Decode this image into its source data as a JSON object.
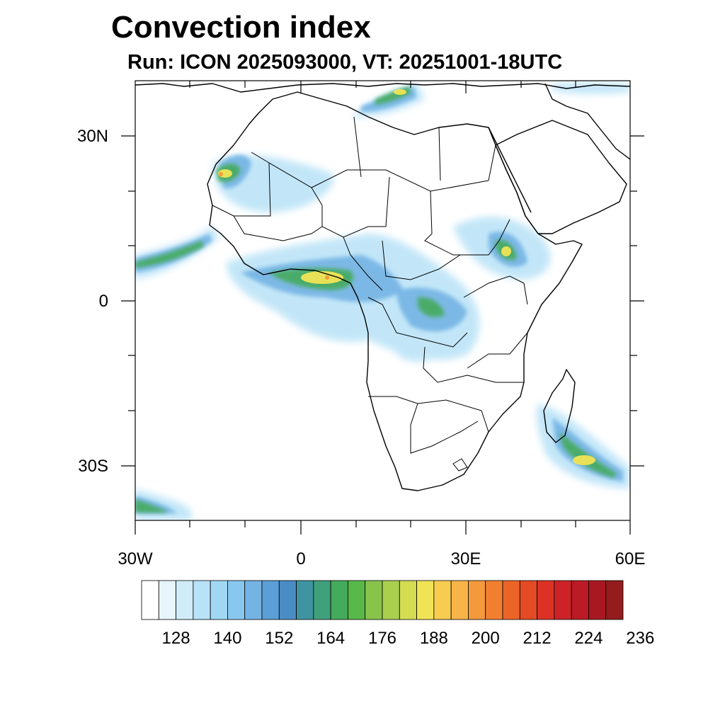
{
  "title": "Convection index",
  "subtitle": "Run: ICON 2025093000,  VT: 20251001-18UTC",
  "axes": {
    "lat_labels": [
      "30N",
      "0",
      "30S"
    ],
    "lon_labels": [
      "30W",
      "0",
      "30E",
      "60E"
    ]
  },
  "colorbar": {
    "labels": [
      "128",
      "140",
      "152",
      "164",
      "176",
      "188",
      "200",
      "212",
      "224",
      "236"
    ],
    "colors": [
      "#ffffff",
      "#e8f5fc",
      "#d0ecf9",
      "#b8e2f7",
      "#a0d8f4",
      "#88c8ee",
      "#74b4e4",
      "#5c9ed6",
      "#4a8cc4",
      "#3e94a0",
      "#40a07c",
      "#44aa5c",
      "#58b84a",
      "#88c44c",
      "#aacf4e",
      "#d4dc52",
      "#f0e456",
      "#f8cc50",
      "#f8b448",
      "#f49a3c",
      "#f08030",
      "#ec6428",
      "#e44a24",
      "#dc3226",
      "#cc2228",
      "#bc1a24",
      "#a81820",
      "#941c1c"
    ]
  },
  "colors": {
    "coast": "#000000",
    "frame": "#000000"
  }
}
